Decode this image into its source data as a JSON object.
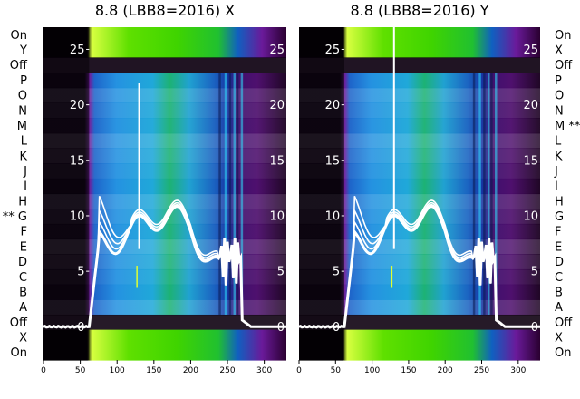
{
  "chart_data": [
    {
      "type": "heatmap",
      "title": "8.8 (LBB8=2016) X",
      "row_labels": [
        "On",
        "Y",
        "Off",
        "P",
        "O",
        "N",
        "M",
        "L",
        "K",
        "J",
        "I",
        "H",
        "** G",
        "F",
        "E",
        "D",
        "C",
        "B",
        "A",
        "Off",
        "X",
        "On"
      ],
      "x_ticks": [
        0,
        50,
        100,
        150,
        200,
        250,
        300
      ],
      "xlim": [
        0,
        330
      ],
      "overlay_yticks": [
        0,
        5,
        10,
        15,
        20,
        25
      ],
      "overlay_ylim": [
        -3,
        27
      ],
      "spike_x": 130,
      "spike_top": 22,
      "curve_offsets": [
        0,
        0.6,
        1.3,
        2.2
      ],
      "heat_color_top": "#3fd400",
      "heat_color_mid": "#1a9fe0",
      "heat_color_edge": "#5a0a7a"
    },
    {
      "type": "heatmap",
      "title": "8.8 (LBB8=2016) Y",
      "row_labels": [
        "On",
        "X",
        "Off",
        "P",
        "O",
        "N",
        "M **",
        "L",
        "K",
        "J",
        "I",
        "H",
        "G",
        "F",
        "E",
        "D",
        "C",
        "B",
        "A",
        "Off",
        "X",
        "On"
      ],
      "x_ticks": [
        0,
        50,
        100,
        150,
        200,
        250,
        300
      ],
      "xlim": [
        0,
        330
      ],
      "overlay_yticks": [
        0,
        5,
        10,
        15,
        20,
        25
      ],
      "overlay_ylim": [
        -3,
        27
      ],
      "spike_x": 130,
      "spike_top": 27,
      "curve_offsets": [
        0,
        0.6,
        1.3,
        2.2
      ],
      "heat_color_top": "#3fd400",
      "heat_color_mid": "#1a9fe0",
      "heat_color_edge": "#5a0a7a"
    }
  ]
}
